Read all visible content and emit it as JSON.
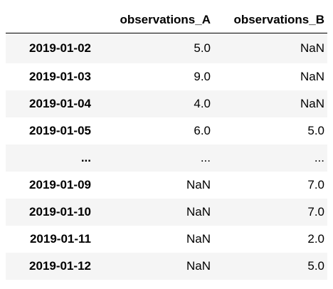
{
  "table": {
    "columns": [
      "observations_A",
      "observations_B"
    ],
    "rows": [
      {
        "index": "2019-01-02",
        "a": "5.0",
        "b": "NaN"
      },
      {
        "index": "2019-01-03",
        "a": "9.0",
        "b": "NaN"
      },
      {
        "index": "2019-01-04",
        "a": "4.0",
        "b": "NaN"
      },
      {
        "index": "2019-01-05",
        "a": "6.0",
        "b": "5.0"
      },
      {
        "index": "...",
        "a": "...",
        "b": "..."
      },
      {
        "index": "2019-01-09",
        "a": "NaN",
        "b": "7.0"
      },
      {
        "index": "2019-01-10",
        "a": "NaN",
        "b": "7.0"
      },
      {
        "index": "2019-01-11",
        "a": "NaN",
        "b": "2.0"
      },
      {
        "index": "2019-01-12",
        "a": "NaN",
        "b": "5.0"
      }
    ]
  }
}
